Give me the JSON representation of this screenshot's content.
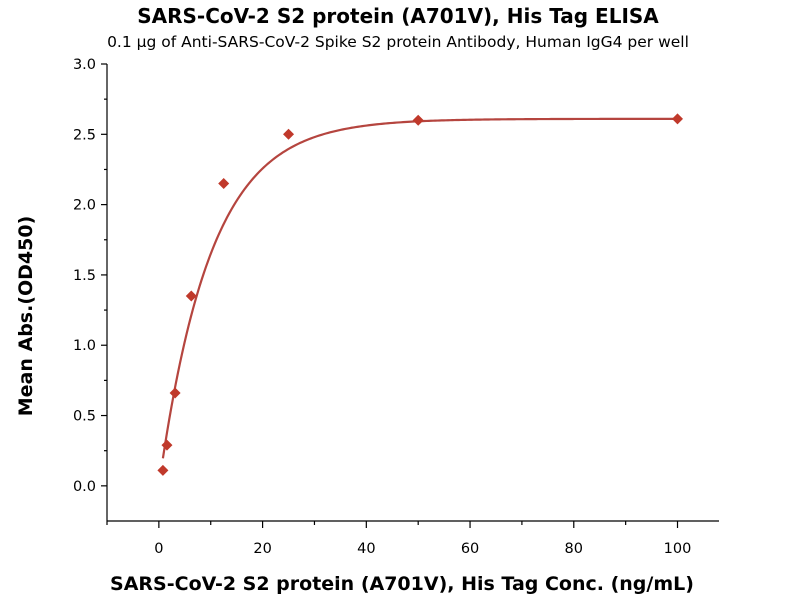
{
  "chart_data": {
    "type": "scatter",
    "title": "SARS-CoV-2 S2 protein (A701V), His Tag ELISA",
    "subtitle": "0.1 μg of Anti-SARS-CoV-2 Spike S2 protein Antibody, Human IgG4 per well",
    "xlabel": "SARS-CoV-2 S2 protein (A701V), His Tag Conc. (ng/mL)",
    "ylabel": "Mean Abs.(OD450)",
    "xlim": [
      -10,
      108
    ],
    "ylim": [
      -0.25,
      3.0
    ],
    "xticks": [
      0,
      20,
      40,
      60,
      80,
      100
    ],
    "yticks": [
      0.0,
      0.5,
      1.0,
      1.5,
      2.0,
      2.5,
      3.0
    ],
    "grid": false,
    "marker": "diamond",
    "color": "#c0392b",
    "curve_color": "#b5453f",
    "series": [
      {
        "x": [
          0.78,
          1.56,
          3.13,
          6.25,
          12.5,
          25,
          50,
          100
        ],
        "y": [
          0.11,
          0.29,
          0.66,
          1.35,
          2.15,
          2.5,
          2.6,
          2.61
        ]
      }
    ],
    "fit": {
      "type": "saturation",
      "ymin": 0.0,
      "ymax": 2.61,
      "k": 0.1
    }
  }
}
